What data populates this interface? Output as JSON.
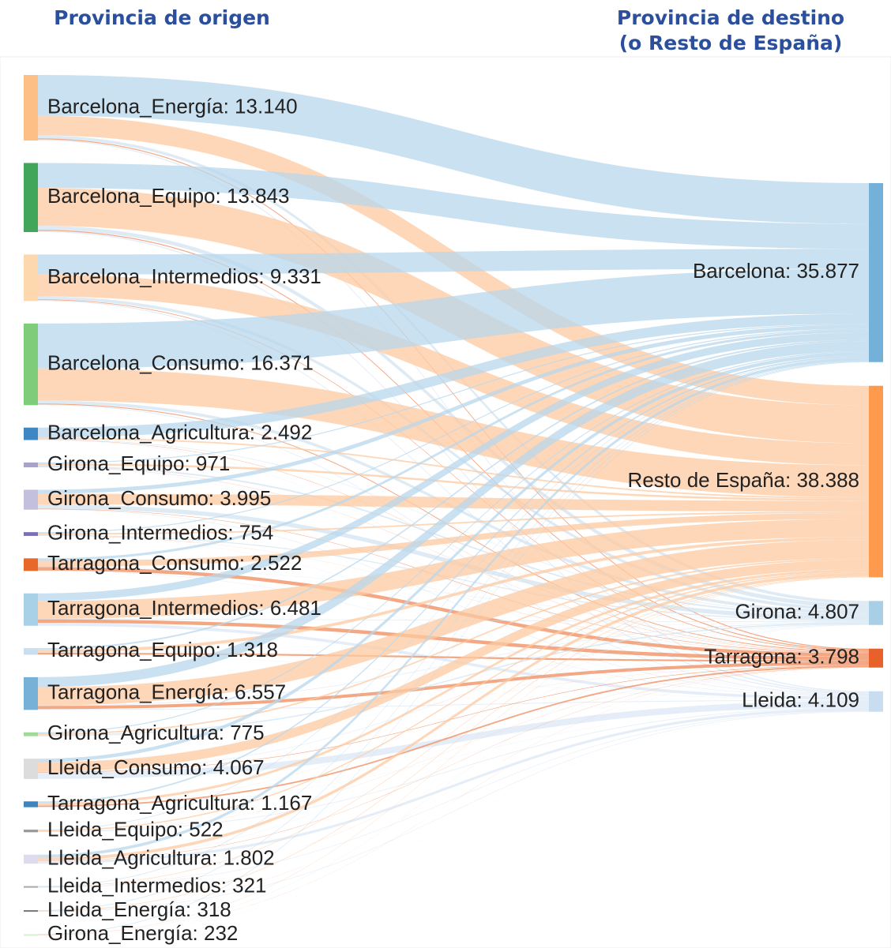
{
  "chart_data": {
    "type": "sankey",
    "source_title": "Provincia de origen",
    "target_title": [
      "Provincia de destino",
      "(o Resto de España)"
    ],
    "sources": [
      {
        "label": "Barcelona_Energía: 13.140",
        "value": 13140,
        "color": "#fdbf86"
      },
      {
        "label": "Barcelona_Equipo: 13.843",
        "value": 13843,
        "color": "#41a55a"
      },
      {
        "label": "Barcelona_Intermedios: 9.331",
        "value": 9331,
        "color": "#fdd8ae"
      },
      {
        "label": "Barcelona_Consumo: 16.371",
        "value": 16371,
        "color": "#7fcc7a"
      },
      {
        "label": "Barcelona_Agricultura: 2.492",
        "value": 2492,
        "color": "#3f87c4"
      },
      {
        "label": "Girona_Equipo: 971",
        "value": 971,
        "color": "#a9a3cc"
      },
      {
        "label": "Girona_Consumo: 3.995",
        "value": 3995,
        "color": "#c3c0de"
      },
      {
        "label": "Girona_Intermedios: 754",
        "value": 754,
        "color": "#7a6fb5"
      },
      {
        "label": "Tarragona_Consumo: 2.522",
        "value": 2522,
        "color": "#e8682a"
      },
      {
        "label": "Tarragona_Intermedios: 6.481",
        "value": 6481,
        "color": "#a8d0e7"
      },
      {
        "label": "Tarragona_Equipo: 1.318",
        "value": 1318,
        "color": "#c9def0"
      },
      {
        "label": "Tarragona_Energía: 6.557",
        "value": 6557,
        "color": "#77b1d8"
      },
      {
        "label": "Girona_Agricultura: 775",
        "value": 775,
        "color": "#a1d99b"
      },
      {
        "label": "Lleida_Consumo: 4.067",
        "value": 4067,
        "color": "#dcdcdc"
      },
      {
        "label": "Tarragona_Agricultura: 1.167",
        "value": 1167,
        "color": "#3d85c0"
      },
      {
        "label": "Lleida_Equipo: 522",
        "value": 522,
        "color": "#9a9a9a"
      },
      {
        "label": "Lleida_Agricultura: 1.802",
        "value": 1802,
        "color": "#dcdcee"
      },
      {
        "label": "Lleida_Intermedios: 321",
        "value": 321,
        "color": "#aaaaaa"
      },
      {
        "label": "Lleida_Energía: 318",
        "value": 318,
        "color": "#777777"
      },
      {
        "label": "Girona_Energía: 232",
        "value": 232,
        "color": "#d6f0d0"
      }
    ],
    "targets": [
      {
        "label": "Barcelona: 35.877",
        "value": 35877,
        "color": "#74b1d9",
        "link_color": "#b8d7ec"
      },
      {
        "label": "Resto de España: 38.388",
        "value": 38388,
        "color": "#fd9a4e",
        "link_color": "#fdc9a0"
      },
      {
        "label": "Girona: 4.807",
        "value": 4807,
        "color": "#a8cfe6",
        "link_color": "#d3e4f2"
      },
      {
        "label": "Tarragona: 3.798",
        "value": 3798,
        "color": "#e8602a",
        "link_color": "#f08a5a"
      },
      {
        "label": "Lleida: 4.109",
        "value": 4109,
        "color": "#c8ddf0",
        "link_color": "#dce8f5"
      }
    ],
    "flows": [
      [
        8177,
        3923,
        600,
        200,
        240
      ],
      [
        5000,
        7600,
        800,
        200,
        243
      ],
      [
        4000,
        4400,
        600,
        131,
        200
      ],
      [
        9000,
        6450,
        600,
        171,
        150
      ],
      [
        2000,
        300,
        92,
        50,
        50
      ],
      [
        200,
        400,
        300,
        36,
        35
      ],
      [
        800,
        2137,
        863,
        95,
        100
      ],
      [
        200,
        300,
        200,
        27,
        27
      ],
      [
        500,
        1200,
        50,
        700,
        72
      ],
      [
        1500,
        3600,
        100,
        700,
        581
      ],
      [
        300,
        600,
        30,
        350,
        38
      ],
      [
        2000,
        3671,
        100,
        629,
        157
      ],
      [
        200,
        300,
        250,
        10,
        15
      ],
      [
        700,
        1897,
        80,
        100,
        1290
      ],
      [
        300,
        500,
        30,
        300,
        37
      ],
      [
        100,
        250,
        20,
        20,
        132
      ],
      [
        600,
        600,
        30,
        50,
        522
      ],
      [
        100,
        100,
        10,
        11,
        100
      ],
      [
        100,
        100,
        10,
        8,
        100
      ],
      [
        100,
        60,
        42,
        10,
        20
      ]
    ]
  }
}
